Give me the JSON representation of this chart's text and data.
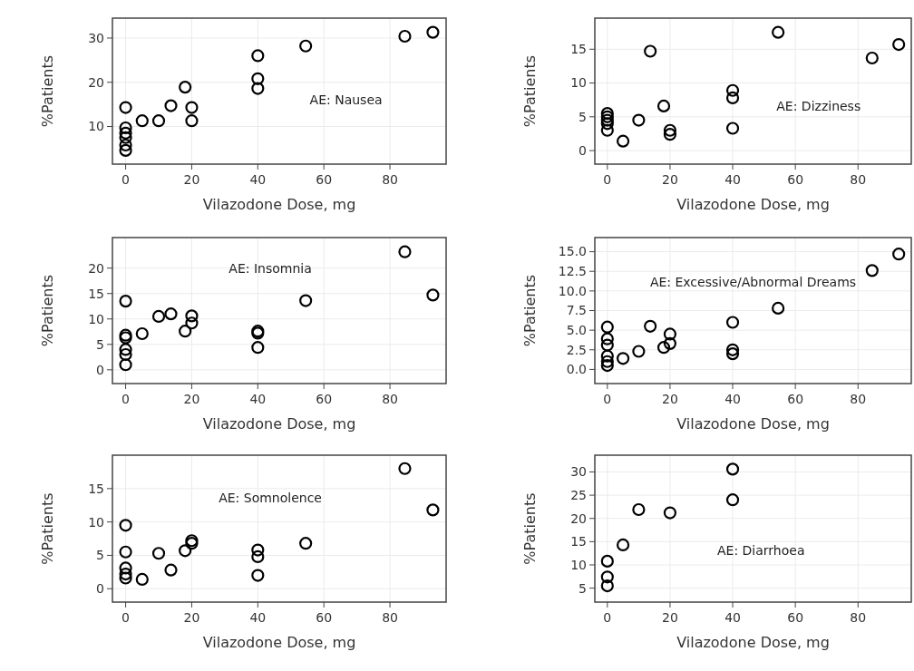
{
  "chart_data": [
    {
      "type": "scatter",
      "xlabel": "Vilazodone Dose, mg",
      "ylabel": "%Patients",
      "annotations": [
        "AE: Nausea"
      ],
      "color": "#000000",
      "marker": "circle",
      "grid": true,
      "x": [
        0,
        0,
        0,
        0,
        0,
        0,
        5,
        10,
        13.7,
        18,
        20,
        20,
        40,
        40,
        40,
        54.5,
        84.5,
        93
      ],
      "values": [
        14.3,
        9.7,
        8.5,
        7.5,
        5.8,
        4.6,
        11.3,
        11.3,
        14.7,
        18.9,
        14.3,
        11.3,
        26,
        20.8,
        18.6,
        28.2,
        30.4,
        31.3
      ],
      "xlim": [
        -4,
        97
      ],
      "xticks": [
        0,
        20,
        40,
        60,
        80
      ],
      "ylim": [
        1.5,
        34.5
      ],
      "yticks": [
        10,
        20,
        30
      ]
    },
    {
      "type": "scatter",
      "xlabel": "Vilazodone Dose, mg",
      "ylabel": "%Patients",
      "annotations": [
        "AE: Dizziness"
      ],
      "color": "#000000",
      "marker": "circle",
      "grid": true,
      "x": [
        0,
        0,
        0,
        0,
        0,
        5,
        10,
        13.7,
        18,
        20,
        20,
        40,
        40,
        40,
        54.5,
        84.5,
        93
      ],
      "values": [
        5.5,
        5.0,
        4.5,
        4.0,
        3.0,
        1.4,
        4.5,
        14.7,
        6.6,
        3.0,
        2.4,
        8.9,
        7.8,
        3.3,
        17.5,
        13.7,
        15.7
      ],
      "xlim": [
        -4,
        97
      ],
      "xticks": [
        0,
        20,
        40,
        60,
        80
      ],
      "ylim": [
        -2,
        19.6
      ],
      "yticks": [
        0,
        5,
        10,
        15
      ]
    },
    {
      "type": "scatter",
      "xlabel": "Vilazodone Dose, mg",
      "ylabel": "%Patients",
      "annotations": [
        "AE: Insomnia"
      ],
      "color": "#000000",
      "marker": "circle",
      "grid": true,
      "x": [
        0,
        0,
        0,
        0,
        0,
        0,
        5,
        10,
        13.7,
        18,
        20,
        20,
        40,
        40,
        40,
        54.5,
        84.5,
        93
      ],
      "values": [
        13.5,
        6.8,
        6.3,
        4.0,
        3.0,
        1.0,
        7.1,
        10.5,
        11.0,
        7.6,
        10.6,
        9.2,
        7.6,
        7.2,
        4.4,
        13.6,
        23.2,
        14.7
      ],
      "xlim": [
        -4,
        97
      ],
      "xticks": [
        0,
        20,
        40,
        60,
        80
      ],
      "ylim": [
        -2.7,
        26
      ],
      "yticks": [
        0,
        5,
        10,
        15,
        20
      ]
    },
    {
      "type": "scatter",
      "xlabel": "Vilazodone Dose, mg",
      "ylabel": "%Patients",
      "annotations": [
        "AE: Excessive/Abnormal Dreams"
      ],
      "color": "#000000",
      "marker": "circle",
      "grid": true,
      "x": [
        0,
        0,
        0,
        0,
        0,
        0,
        5,
        10,
        13.7,
        18,
        20,
        20,
        40,
        40,
        40,
        54.5,
        84.5,
        93
      ],
      "values": [
        5.4,
        3.9,
        3.1,
        1.7,
        1.0,
        0.5,
        1.4,
        2.3,
        5.5,
        2.8,
        4.5,
        3.3,
        6.0,
        2.5,
        2.0,
        7.8,
        12.6,
        14.7
      ],
      "xlim": [
        -4,
        97
      ],
      "xticks": [
        0,
        20,
        40,
        60,
        80
      ],
      "ylim": [
        -1.8,
        16.8
      ],
      "yticks": [
        {
          "value": 0,
          "label": "0.0"
        },
        2.5,
        {
          "value": 5,
          "label": "5.0"
        },
        7.5,
        {
          "value": 10,
          "label": "10.0"
        },
        12.5,
        {
          "value": 15,
          "label": "15.0"
        }
      ]
    },
    {
      "type": "scatter",
      "xlabel": "Vilazodone Dose, mg",
      "ylabel": "%Patients",
      "annotations": [
        "AE: Somnolence"
      ],
      "color": "#000000",
      "marker": "circle",
      "grid": true,
      "x": [
        0,
        0,
        0,
        0,
        0,
        5,
        10,
        13.7,
        18,
        20,
        20,
        40,
        40,
        40,
        54.5,
        84.5,
        93
      ],
      "values": [
        9.5,
        5.5,
        3.1,
        2.2,
        1.6,
        1.4,
        5.3,
        2.8,
        5.7,
        7.2,
        6.8,
        5.8,
        4.8,
        2.0,
        6.8,
        18.0,
        11.8
      ],
      "xlim": [
        -4,
        97
      ],
      "xticks": [
        0,
        20,
        40,
        60,
        80
      ],
      "ylim": [
        -2,
        20
      ],
      "yticks": [
        0,
        5,
        10,
        15
      ]
    },
    {
      "type": "scatter",
      "xlabel": "Vilazodone Dose, mg",
      "ylabel": "%Patients",
      "annotations": [
        "AE: Diarrhoea"
      ],
      "color": "#000000",
      "marker": "circle",
      "grid": true,
      "x": [
        0,
        0,
        0,
        5,
        10,
        20,
        40,
        40
      ],
      "values": [
        10.8,
        7.4,
        5.5,
        14.3,
        21.9,
        21.2,
        30.6,
        24.0
      ],
      "xlim": [
        -4,
        97
      ],
      "xticks": [
        0,
        20,
        40,
        60,
        80
      ],
      "ylim": [
        2,
        33.6
      ],
      "yticks": [
        5,
        10,
        15,
        20,
        25,
        30
      ]
    }
  ]
}
